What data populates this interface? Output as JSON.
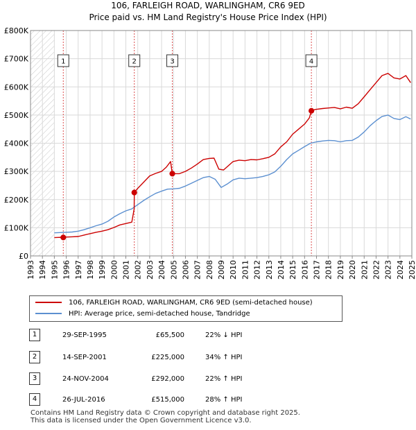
{
  "title_line1": "106, FARLEIGH ROAD, WARLINGHAM, CR6 9ED",
  "title_line2": "Price paid vs. HM Land Registry's House Price Index (HPI)",
  "chart_data": {
    "type": "line",
    "title": "106, FARLEIGH ROAD, WARLINGHAM, CR6 9ED — Price paid vs. HM Land Registry's House Price Index (HPI)",
    "xlabel": "",
    "ylabel": "",
    "xlim": [
      1993,
      2025
    ],
    "ylim": [
      0,
      800000
    ],
    "x_ticks": [
      1993,
      1994,
      1995,
      1996,
      1997,
      1998,
      1999,
      2000,
      2001,
      2002,
      2003,
      2004,
      2005,
      2006,
      2007,
      2008,
      2009,
      2010,
      2011,
      2012,
      2013,
      2014,
      2015,
      2016,
      2017,
      2018,
      2019,
      2020,
      2021,
      2022,
      2023,
      2024,
      2025
    ],
    "y_ticks": [
      {
        "value": 0,
        "label": "£0"
      },
      {
        "value": 100000,
        "label": "£100K"
      },
      {
        "value": 200000,
        "label": "£200K"
      },
      {
        "value": 300000,
        "label": "£300K"
      },
      {
        "value": 400000,
        "label": "£400K"
      },
      {
        "value": 500000,
        "label": "£500K"
      },
      {
        "value": 600000,
        "label": "£600K"
      },
      {
        "value": 700000,
        "label": "£700K"
      },
      {
        "value": 800000,
        "label": "£800K"
      }
    ],
    "grid": true,
    "hatched_ranges": [
      [
        1993,
        1995.0
      ],
      [
        2025.0,
        2025.5
      ]
    ],
    "series": [
      {
        "name": "106, FARLEIGH ROAD, WARLINGHAM, CR6 9ED (semi-detached house)",
        "color": "#cc0000",
        "points": [
          [
            1995.0,
            65000
          ],
          [
            1995.5,
            66000
          ],
          [
            1995.75,
            65500
          ],
          [
            1996.0,
            67000
          ],
          [
            1996.5,
            68000
          ],
          [
            1997.0,
            69000
          ],
          [
            1997.5,
            74000
          ],
          [
            1998.0,
            79000
          ],
          [
            1998.5,
            84000
          ],
          [
            1999.0,
            88000
          ],
          [
            1999.5,
            93000
          ],
          [
            2000.0,
            101000
          ],
          [
            2000.5,
            110000
          ],
          [
            2001.0,
            115000
          ],
          [
            2001.5,
            120000
          ],
          [
            2001.7,
            167000
          ],
          [
            2001.71,
            225000
          ],
          [
            2002.0,
            240000
          ],
          [
            2002.5,
            262000
          ],
          [
            2003.0,
            284000
          ],
          [
            2003.5,
            293000
          ],
          [
            2004.0,
            300000
          ],
          [
            2004.4,
            315000
          ],
          [
            2004.75,
            335000
          ],
          [
            2004.9,
            292000
          ],
          [
            2005.5,
            292000
          ],
          [
            2006.0,
            300000
          ],
          [
            2006.5,
            312000
          ],
          [
            2007.0,
            326000
          ],
          [
            2007.5,
            342000
          ],
          [
            2008.0,
            346000
          ],
          [
            2008.4,
            347000
          ],
          [
            2008.8,
            308000
          ],
          [
            2009.2,
            305000
          ],
          [
            2009.6,
            320000
          ],
          [
            2010.0,
            335000
          ],
          [
            2010.5,
            340000
          ],
          [
            2011.0,
            338000
          ],
          [
            2011.5,
            342000
          ],
          [
            2012.0,
            341000
          ],
          [
            2012.5,
            345000
          ],
          [
            2013.0,
            350000
          ],
          [
            2013.5,
            362000
          ],
          [
            2014.0,
            387000
          ],
          [
            2014.5,
            405000
          ],
          [
            2015.0,
            432000
          ],
          [
            2015.5,
            450000
          ],
          [
            2016.0,
            468000
          ],
          [
            2016.4,
            490000
          ],
          [
            2016.57,
            515000
          ],
          [
            2016.9,
            520000
          ],
          [
            2017.5,
            523000
          ],
          [
            2018.0,
            525000
          ],
          [
            2018.5,
            527000
          ],
          [
            2019.0,
            522000
          ],
          [
            2019.5,
            528000
          ],
          [
            2020.0,
            524000
          ],
          [
            2020.5,
            540000
          ],
          [
            2021.0,
            565000
          ],
          [
            2021.5,
            590000
          ],
          [
            2022.0,
            615000
          ],
          [
            2022.5,
            640000
          ],
          [
            2023.0,
            648000
          ],
          [
            2023.5,
            632000
          ],
          [
            2024.0,
            628000
          ],
          [
            2024.5,
            640000
          ],
          [
            2024.9,
            615000
          ]
        ]
      },
      {
        "name": "HPI: Average price, semi-detached house, Tandridge",
        "color": "#5b8fd0",
        "points": [
          [
            1995.0,
            82000
          ],
          [
            1995.5,
            83000
          ],
          [
            1996.0,
            84000
          ],
          [
            1996.5,
            85000
          ],
          [
            1997.0,
            88000
          ],
          [
            1997.5,
            93000
          ],
          [
            1998.0,
            100000
          ],
          [
            1998.5,
            107000
          ],
          [
            1999.0,
            113000
          ],
          [
            1999.5,
            123000
          ],
          [
            2000.0,
            138000
          ],
          [
            2000.5,
            150000
          ],
          [
            2001.0,
            160000
          ],
          [
            2001.5,
            167000
          ],
          [
            2002.0,
            182000
          ],
          [
            2002.5,
            197000
          ],
          [
            2003.0,
            210000
          ],
          [
            2003.5,
            222000
          ],
          [
            2004.0,
            230000
          ],
          [
            2004.5,
            237000
          ],
          [
            2005.0,
            238000
          ],
          [
            2005.5,
            240000
          ],
          [
            2006.0,
            248000
          ],
          [
            2006.5,
            258000
          ],
          [
            2007.0,
            268000
          ],
          [
            2007.5,
            278000
          ],
          [
            2008.0,
            282000
          ],
          [
            2008.5,
            272000
          ],
          [
            2009.0,
            243000
          ],
          [
            2009.5,
            255000
          ],
          [
            2010.0,
            270000
          ],
          [
            2010.5,
            276000
          ],
          [
            2011.0,
            274000
          ],
          [
            2011.5,
            276000
          ],
          [
            2012.0,
            278000
          ],
          [
            2012.5,
            282000
          ],
          [
            2013.0,
            288000
          ],
          [
            2013.5,
            298000
          ],
          [
            2014.0,
            318000
          ],
          [
            2014.5,
            342000
          ],
          [
            2015.0,
            362000
          ],
          [
            2015.5,
            375000
          ],
          [
            2016.0,
            388000
          ],
          [
            2016.5,
            400000
          ],
          [
            2017.0,
            405000
          ],
          [
            2017.5,
            408000
          ],
          [
            2018.0,
            410000
          ],
          [
            2018.5,
            409000
          ],
          [
            2019.0,
            405000
          ],
          [
            2019.5,
            409000
          ],
          [
            2020.0,
            410000
          ],
          [
            2020.5,
            422000
          ],
          [
            2021.0,
            440000
          ],
          [
            2021.5,
            462000
          ],
          [
            2022.0,
            480000
          ],
          [
            2022.5,
            495000
          ],
          [
            2023.0,
            500000
          ],
          [
            2023.5,
            488000
          ],
          [
            2024.0,
            484000
          ],
          [
            2024.5,
            494000
          ],
          [
            2024.9,
            486000
          ]
        ]
      }
    ],
    "sales": [
      {
        "num": "1",
        "x": 1995.75,
        "price": 65500
      },
      {
        "num": "2",
        "x": 2001.71,
        "price": 225000
      },
      {
        "num": "3",
        "x": 2004.9,
        "price": 292000
      },
      {
        "num": "4",
        "x": 2016.57,
        "price": 515000
      }
    ]
  },
  "legend": {
    "items": [
      {
        "label": "106, FARLEIGH ROAD, WARLINGHAM, CR6 9ED (semi-detached house)",
        "color": "#cc0000"
      },
      {
        "label": "HPI: Average price, semi-detached house, Tandridge",
        "color": "#5b8fd0"
      }
    ]
  },
  "sales_table": [
    {
      "num": "1",
      "date": "29-SEP-1995",
      "price": "£65,500",
      "hpi": "22% ↓ HPI"
    },
    {
      "num": "2",
      "date": "14-SEP-2001",
      "price": "£225,000",
      "hpi": "34% ↑ HPI"
    },
    {
      "num": "3",
      "date": "24-NOV-2004",
      "price": "£292,000",
      "hpi": "22% ↑ HPI"
    },
    {
      "num": "4",
      "date": "26-JUL-2016",
      "price": "£515,000",
      "hpi": "28% ↑ HPI"
    }
  ],
  "footer": {
    "line1": "Contains HM Land Registry data © Crown copyright and database right 2025.",
    "line2": "This data is licensed under the Open Government Licence v3.0."
  }
}
